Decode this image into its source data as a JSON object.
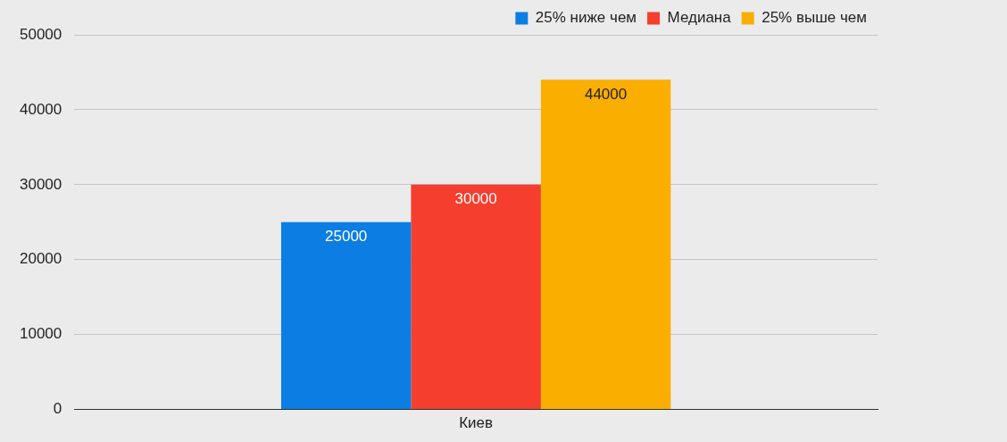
{
  "chart_data": {
    "type": "bar",
    "categories": [
      "Киев"
    ],
    "series": [
      {
        "name": "25% ниже чем",
        "color": "#0b7de3",
        "values": [
          25000
        ]
      },
      {
        "name": "Медиана",
        "color": "#f53e2d",
        "values": [
          30000
        ]
      },
      {
        "name": "25% выше чем",
        "color": "#f9ae00",
        "values": [
          44000
        ]
      }
    ],
    "ylim": [
      0,
      50000
    ],
    "yticks": [
      0,
      10000,
      20000,
      30000,
      40000,
      50000
    ],
    "grid": "y",
    "legend": "top right",
    "data_labels": true
  }
}
